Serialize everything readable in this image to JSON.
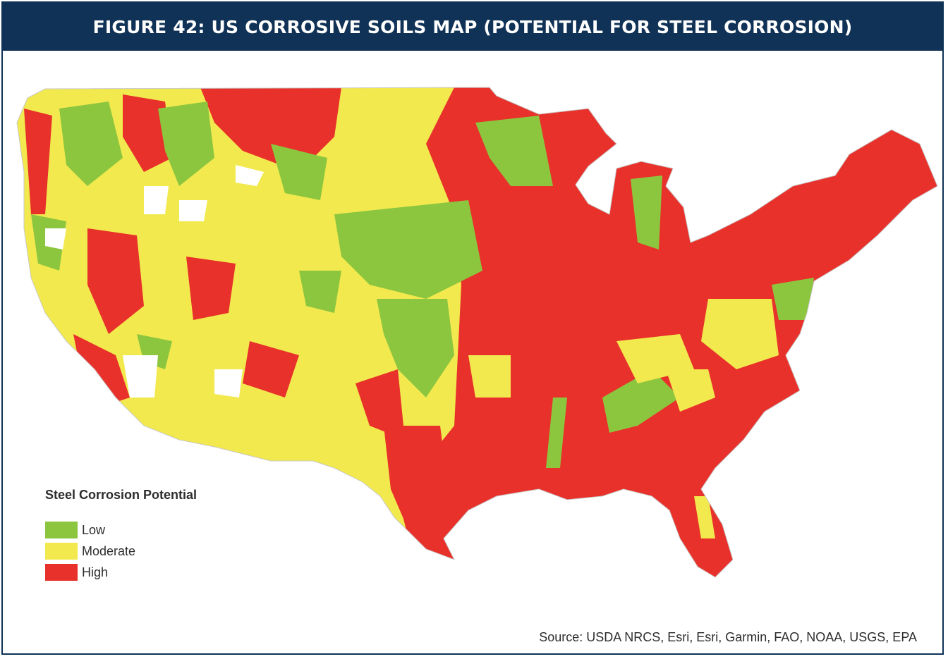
{
  "title": "FIGURE 42: US CORROSIVE SOILS MAP (POTENTIAL FOR STEEL CORROSION)",
  "legend": {
    "title": "Steel Corrosion Potential",
    "items": [
      {
        "label": "Low",
        "color": "#8cc63f"
      },
      {
        "label": "Moderate",
        "color": "#f2e94e"
      },
      {
        "label": "High",
        "color": "#e8312a"
      }
    ]
  },
  "source": "Source: USDA NRCS, Esri, Esri, Garmin, FAO, NOAA, USGS, EPA",
  "colors": {
    "header_bg": "#0f3256",
    "header_text": "#ffffff",
    "low": "#8cc63f",
    "moderate": "#f2e94e",
    "high": "#e8312a"
  }
}
